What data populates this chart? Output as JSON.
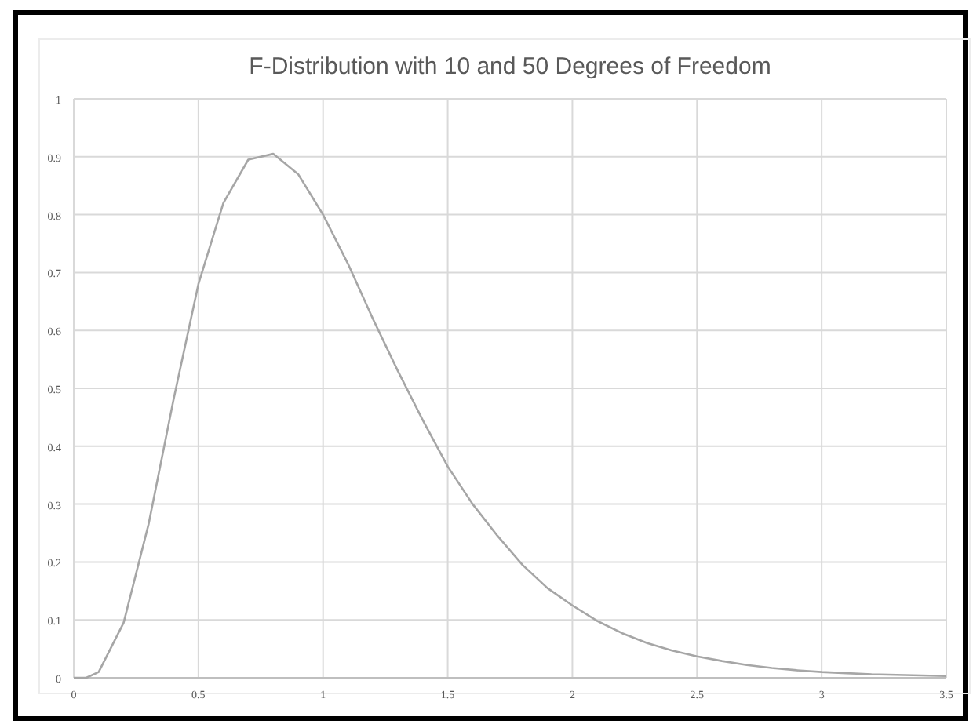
{
  "chart_data": {
    "type": "line",
    "title": "F-Distribution with 10 and 50 Degrees of Freedom",
    "x": [
      0,
      0.05,
      0.1,
      0.2,
      0.3,
      0.4,
      0.5,
      0.6,
      0.7,
      0.8,
      0.9,
      1.0,
      1.1,
      1.2,
      1.3,
      1.4,
      1.5,
      1.6,
      1.7,
      1.8,
      1.9,
      2.0,
      2.1,
      2.2,
      2.3,
      2.4,
      2.5,
      2.6,
      2.7,
      2.8,
      2.9,
      3.0,
      3.1,
      3.2,
      3.3,
      3.4,
      3.5
    ],
    "series": [
      {
        "color": "#a6a6a6",
        "values": [
          0,
          0,
          0.01,
          0.095,
          0.265,
          0.48,
          0.68,
          0.82,
          0.895,
          0.905,
          0.87,
          0.8,
          0.715,
          0.62,
          0.53,
          0.445,
          0.365,
          0.3,
          0.245,
          0.195,
          0.155,
          0.125,
          0.098,
          0.077,
          0.06,
          0.047,
          0.037,
          0.029,
          0.022,
          0.017,
          0.013,
          0.01,
          0.008,
          0.006,
          0.005,
          0.004,
          0.003
        ]
      }
    ],
    "xlim": [
      0,
      3.5
    ],
    "ylim": [
      0,
      1
    ],
    "xticks": [
      0,
      {
        "value": 0.5,
        "label": "0.5"
      },
      1,
      {
        "value": 1.5,
        "label": "1.5"
      },
      2,
      {
        "value": 2.5,
        "label": "2.5"
      },
      3,
      {
        "value": 3.5,
        "label": "3.5"
      }
    ],
    "yticks": [
      0,
      0.1,
      0.2,
      0.3,
      0.4,
      0.5,
      0.6,
      0.7,
      0.8,
      0.9,
      1
    ],
    "grid": true,
    "marker": "none",
    "line_style": "solid"
  }
}
